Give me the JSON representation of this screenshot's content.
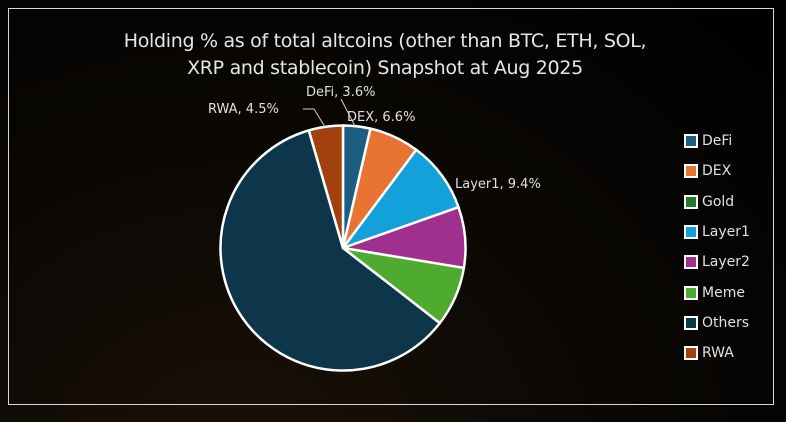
{
  "chart_data": {
    "type": "pie",
    "title": [
      "Holding % as of total altcoins (other than BTC, ETH, SOL,",
      "XRP and stablecoin) Snapshot at Aug 2025"
    ],
    "categories": [
      "DeFi",
      "DEX",
      "Gold",
      "Layer1",
      "Layer2",
      "Meme",
      "Others",
      "RWA"
    ],
    "values": [
      3.6,
      6.6,
      0.0,
      9.4,
      8.0,
      7.9,
      60.0,
      4.5
    ],
    "colors": [
      "#1a5f82",
      "#e87332",
      "#1f7a2e",
      "#14a0d8",
      "#a0308e",
      "#4faa30",
      "#0e364a",
      "#a2400e"
    ],
    "data_labels": {
      "DeFi": "DeFi, 3.6%",
      "DEX": "DEX, 6.6%",
      "Layer1": "Layer1, 9.4%",
      "RWA": "RWA, 4.5%"
    },
    "slice_order": [
      "DeFi",
      "DEX",
      "Layer1",
      "Layer2",
      "Meme",
      "Others",
      "RWA"
    ],
    "legend_position": "right",
    "start_angle": "12 o'clock, clockwise"
  }
}
